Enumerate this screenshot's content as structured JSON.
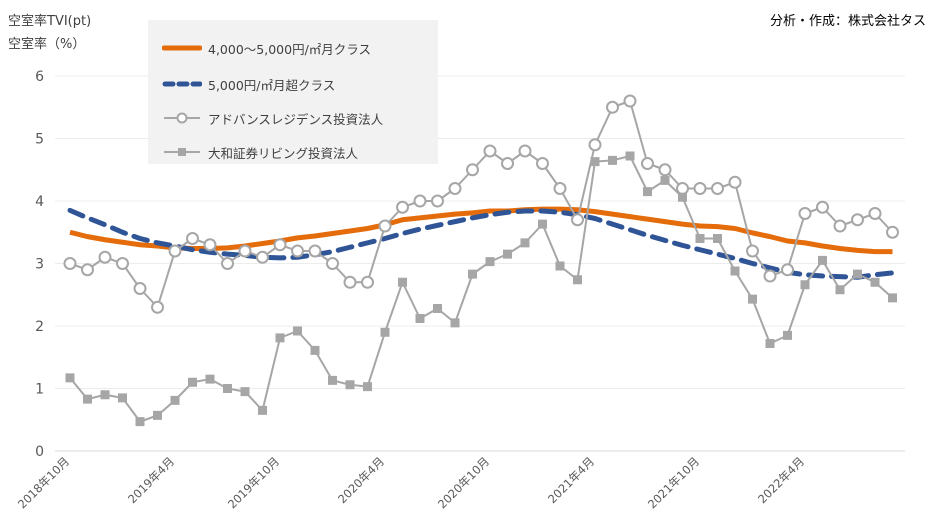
{
  "header": {
    "ylabel_top": "空室率TVI(pt)",
    "ylabel_bottom": "空室率（%）",
    "source": "分析・作成：株式会社タス"
  },
  "colors": {
    "orange": "#e46c0a",
    "blue": "#2f5597",
    "gray": "#a6a6a6",
    "grid": "#ececec"
  },
  "chart_data": {
    "type": "line",
    "title": "",
    "xlabel": "",
    "ylabel": "空室率TVI(pt) / 空室率（%）",
    "ylim": [
      0,
      6
    ],
    "yticks": [
      "0",
      "1",
      "2",
      "3",
      "4",
      "5",
      "6"
    ],
    "grid": true,
    "legend_position": "top-left",
    "x": [
      "2018-10",
      "2018-11",
      "2018-12",
      "2019-01",
      "2019-02",
      "2019-03",
      "2019-04",
      "2019-05",
      "2019-06",
      "2019-07",
      "2019-08",
      "2019-09",
      "2019-10",
      "2019-11",
      "2019-12",
      "2020-01",
      "2020-02",
      "2020-03",
      "2020-04",
      "2020-05",
      "2020-06",
      "2020-07",
      "2020-08",
      "2020-09",
      "2020-10",
      "2020-11",
      "2020-12",
      "2021-01",
      "2021-02",
      "2021-03",
      "2021-04",
      "2021-05",
      "2021-06",
      "2021-07",
      "2021-08",
      "2021-09",
      "2021-10",
      "2021-11",
      "2021-12",
      "2022-01",
      "2022-02",
      "2022-03",
      "2022-04",
      "2022-05",
      "2022-06",
      "2022-07",
      "2022-08",
      "2022-09"
    ],
    "xtick_labels": [
      {
        "index": 0,
        "label": "2018年10月"
      },
      {
        "index": 6,
        "label": "2019年4月"
      },
      {
        "index": 12,
        "label": "2019年10月"
      },
      {
        "index": 18,
        "label": "2020年4月"
      },
      {
        "index": 24,
        "label": "2020年10月"
      },
      {
        "index": 30,
        "label": "2021年4月"
      },
      {
        "index": 36,
        "label": "2021年10月"
      },
      {
        "index": 42,
        "label": "2022年4月"
      }
    ],
    "series": [
      {
        "name": "4,000～5,000円/㎡月クラス",
        "style": "solid-thick",
        "color": "#e46c0a",
        "values": [
          3.5,
          3.43,
          3.38,
          3.34,
          3.3,
          3.28,
          3.25,
          3.24,
          3.24,
          3.25,
          3.28,
          3.32,
          3.36,
          3.41,
          3.44,
          3.48,
          3.52,
          3.56,
          3.62,
          3.7,
          3.73,
          3.76,
          3.79,
          3.81,
          3.84,
          3.84,
          3.86,
          3.87,
          3.87,
          3.86,
          3.83,
          3.79,
          3.75,
          3.71,
          3.67,
          3.63,
          3.6,
          3.59,
          3.56,
          3.49,
          3.43,
          3.36,
          3.33,
          3.28,
          3.24,
          3.21,
          3.19,
          3.19
        ]
      },
      {
        "name": "5,000円/㎡月超クラス",
        "style": "dashed-thick",
        "color": "#2f5597",
        "values": [
          3.85,
          3.73,
          3.62,
          3.5,
          3.4,
          3.33,
          3.28,
          3.22,
          3.18,
          3.15,
          3.13,
          3.1,
          3.09,
          3.1,
          3.14,
          3.19,
          3.26,
          3.33,
          3.4,
          3.48,
          3.55,
          3.61,
          3.67,
          3.73,
          3.78,
          3.82,
          3.84,
          3.84,
          3.82,
          3.78,
          3.72,
          3.63,
          3.54,
          3.45,
          3.37,
          3.29,
          3.22,
          3.15,
          3.08,
          3.0,
          2.93,
          2.86,
          2.82,
          2.8,
          2.79,
          2.78,
          2.82,
          2.85
        ]
      },
      {
        "name": "アドバンスレジデンス投資法人",
        "style": "circle-markers",
        "color": "#a6a6a6",
        "values": [
          3.0,
          2.9,
          3.1,
          3.0,
          2.6,
          2.3,
          3.2,
          3.4,
          3.3,
          3.0,
          3.2,
          3.1,
          3.3,
          3.2,
          3.2,
          3.0,
          2.7,
          2.7,
          3.6,
          3.9,
          4.0,
          4.0,
          4.2,
          4.5,
          4.8,
          4.6,
          4.8,
          4.6,
          4.2,
          3.7,
          4.9,
          5.5,
          5.6,
          4.6,
          4.5,
          4.2,
          4.2,
          4.2,
          4.3,
          3.2,
          2.8,
          2.9,
          3.8,
          3.9,
          3.6,
          3.7,
          3.8,
          3.5
        ]
      },
      {
        "name": "大和証券リビング投資法人",
        "style": "square-markers",
        "color": "#a6a6a6",
        "values": [
          1.17,
          0.83,
          0.9,
          0.85,
          0.47,
          0.57,
          0.81,
          1.1,
          1.15,
          1.0,
          0.95,
          0.65,
          1.81,
          1.92,
          1.61,
          1.13,
          1.06,
          1.03,
          1.9,
          2.7,
          2.12,
          2.28,
          2.05,
          2.83,
          3.03,
          3.15,
          3.33,
          3.63,
          2.96,
          2.74,
          4.63,
          4.65,
          4.72,
          4.15,
          4.33,
          4.06,
          3.4,
          3.4,
          2.88,
          2.43,
          1.72,
          1.85,
          2.66,
          3.05,
          2.58,
          2.83,
          2.7,
          2.45
        ]
      }
    ]
  }
}
